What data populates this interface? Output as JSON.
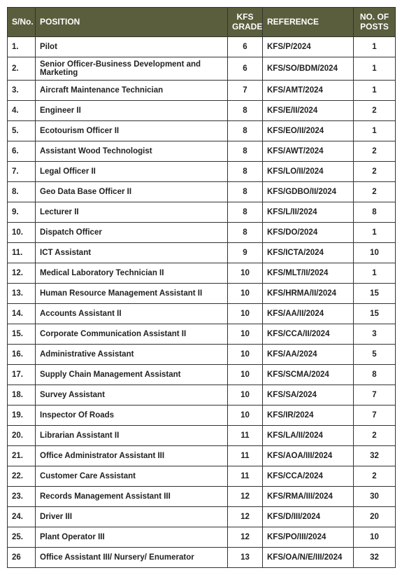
{
  "table": {
    "header_bg": "#5a5e3d",
    "header_fg": "#ffffff",
    "border_color": "#333333",
    "columns": [
      {
        "key": "sno",
        "label": "S/No.",
        "align": "left"
      },
      {
        "key": "pos",
        "label": "POSITION",
        "align": "left"
      },
      {
        "key": "grade",
        "label": "KFS GRADE",
        "align": "center"
      },
      {
        "key": "ref",
        "label": "REFERENCE",
        "align": "left"
      },
      {
        "key": "posts",
        "label": "NO. OF POSTS",
        "align": "center"
      }
    ],
    "rows": [
      {
        "sno": "1.",
        "pos": "Pilot",
        "grade": "6",
        "ref": "KFS/P/2024",
        "posts": "1"
      },
      {
        "sno": "2.",
        "pos": "Senior Officer-Business Development and Marketing",
        "grade": "6",
        "ref": "KFS/SO/BDM/2024",
        "posts": "1"
      },
      {
        "sno": "3.",
        "pos": "Aircraft Maintenance Technician",
        "grade": "7",
        "ref": "KFS/AMT/2024",
        "posts": "1"
      },
      {
        "sno": "4.",
        "pos": "Engineer II",
        "grade": "8",
        "ref": "KFS/E/II/2024",
        "posts": "2"
      },
      {
        "sno": "5.",
        "pos": "Ecotourism Officer II",
        "grade": "8",
        "ref": "KFS/EO/II/2024",
        "posts": "1"
      },
      {
        "sno": "6.",
        "pos": "Assistant Wood Technologist",
        "grade": "8",
        "ref": "KFS/AWT/2024",
        "posts": "2"
      },
      {
        "sno": "7.",
        "pos": "Legal Officer II",
        "grade": "8",
        "ref": "KFS/LO/II/2024",
        "posts": "2"
      },
      {
        "sno": "8.",
        "pos": "Geo Data Base Officer II",
        "grade": "8",
        "ref": "KFS/GDBO/II/2024",
        "posts": "2"
      },
      {
        "sno": "9.",
        "pos": "Lecturer II",
        "grade": "8",
        "ref": "KFS/L/II/2024",
        "posts": "8"
      },
      {
        "sno": "10.",
        "pos": "Dispatch Officer",
        "grade": "8",
        "ref": "KFS/DO/2024",
        "posts": "1"
      },
      {
        "sno": "11.",
        "pos": "ICT Assistant",
        "grade": "9",
        "ref": "KFS/ICTA/2024",
        "posts": "10"
      },
      {
        "sno": "12.",
        "pos": "Medical Laboratory Technician II",
        "grade": "10",
        "ref": "KFS/MLT/II/2024",
        "posts": "1"
      },
      {
        "sno": "13.",
        "pos": "Human Resource Management Assistant II",
        "grade": "10",
        "ref": "KFS/HRMA/II/2024",
        "posts": "15"
      },
      {
        "sno": "14.",
        "pos": "Accounts Assistant II",
        "grade": "10",
        "ref": "KFS/AA/II/2024",
        "posts": "15"
      },
      {
        "sno": "15.",
        "pos": "Corporate Communication Assistant II",
        "grade": "10",
        "ref": "KFS/CCA/II/2024",
        "posts": "3"
      },
      {
        "sno": "16.",
        "pos": "Administrative Assistant",
        "grade": "10",
        "ref": "KFS/AA/2024",
        "posts": "5"
      },
      {
        "sno": "17.",
        "pos": "Supply Chain Management Assistant",
        "grade": "10",
        "ref": "KFS/SCMA/2024",
        "posts": "8"
      },
      {
        "sno": "18.",
        "pos": "Survey Assistant",
        "grade": "10",
        "ref": "KFS/SA/2024",
        "posts": "7"
      },
      {
        "sno": "19.",
        "pos": "Inspector Of Roads",
        "grade": "10",
        "ref": "KFS/IR/2024",
        "posts": "7"
      },
      {
        "sno": "20.",
        "pos": "Librarian Assistant II",
        "grade": "11",
        "ref": "KFS/LA/II/2024",
        "posts": "2"
      },
      {
        "sno": "21.",
        "pos": "Office Administrator Assistant III",
        "grade": "11",
        "ref": "KFS/AOA/III/2024",
        "posts": "32"
      },
      {
        "sno": "22.",
        "pos": "Customer Care Assistant",
        "grade": "11",
        "ref": "KFS/CCA/2024",
        "posts": "2"
      },
      {
        "sno": "23.",
        "pos": "Records Management Assistant III",
        "grade": "12",
        "ref": "KFS/RMA/III/2024",
        "posts": "30"
      },
      {
        "sno": "24.",
        "pos": "Driver III",
        "grade": "12",
        "ref": "KFS/D/III/2024",
        "posts": "20"
      },
      {
        "sno": "25.",
        "pos": "Plant Operator III",
        "grade": "12",
        "ref": "KFS/PO/III/2024",
        "posts": "10"
      },
      {
        "sno": "26",
        "pos": "Office Assistant III/ Nursery/ Enumerator",
        "grade": "13",
        "ref": "KFS/OA/N/E/III/2024",
        "posts": "32"
      }
    ]
  }
}
